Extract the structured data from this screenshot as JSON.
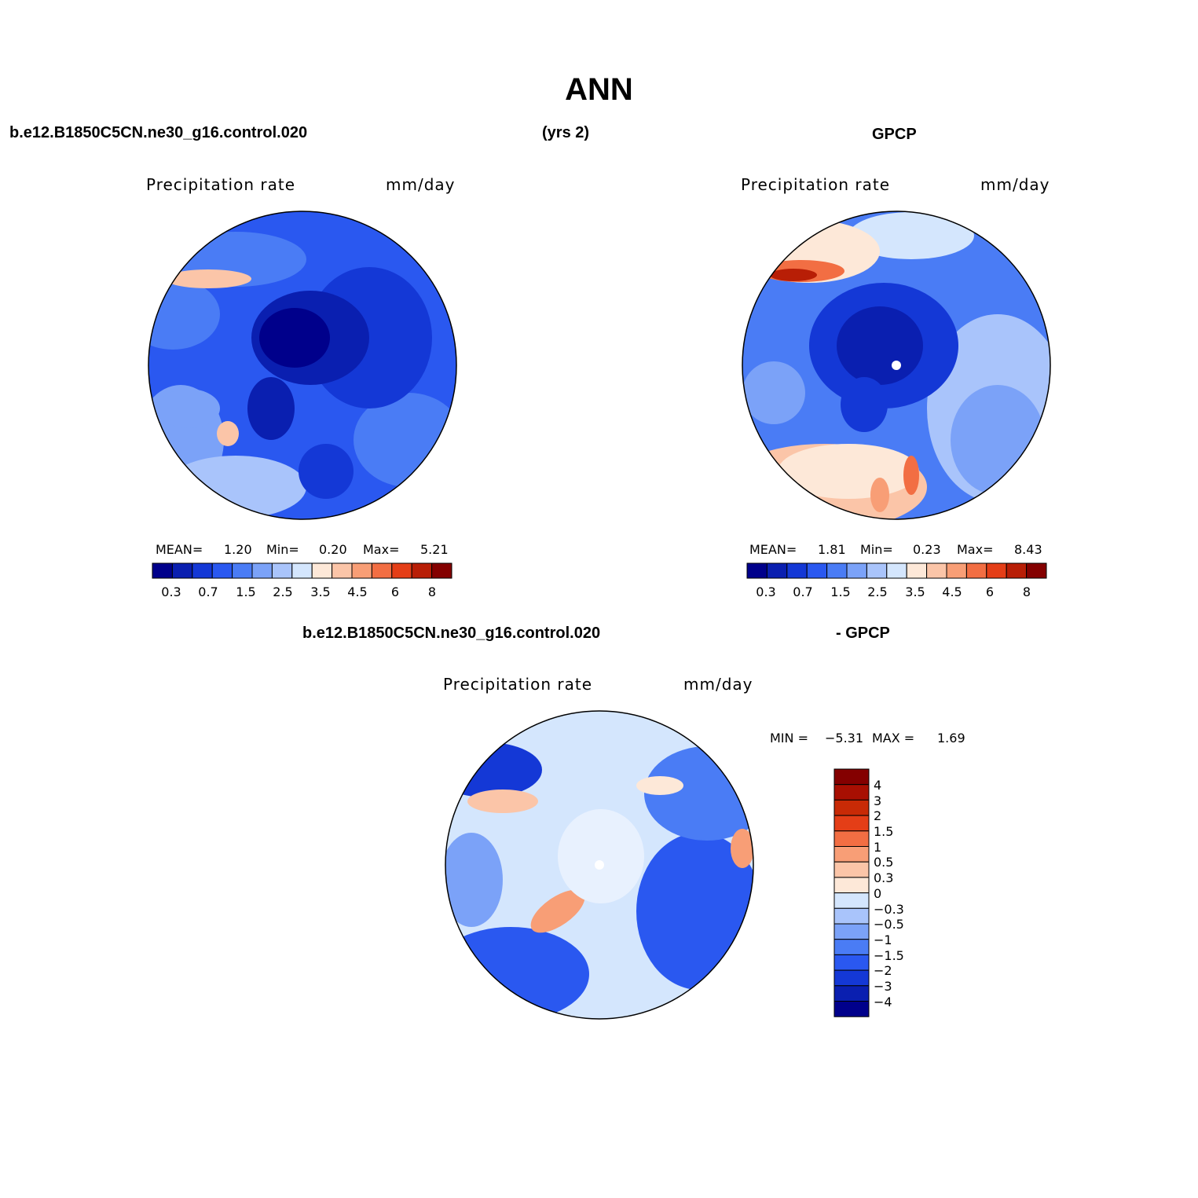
{
  "figure": {
    "title": "ANN",
    "top_left_case": "b.e12.B1850C5CN.ne30_g16.control.020",
    "top_center_years": "(yrs 2)",
    "top_right_obs": "GPCP",
    "bottom_left_case": "b.e12.B1850C5CN.ne30_g16.control.020",
    "bottom_right_obs": "- GPCP"
  },
  "panels": [
    {
      "name": "model",
      "variable": "Precipitation  rate",
      "units": "mm/day",
      "mean_label": "MEAN=",
      "mean": "1.20",
      "min_label": "Min=",
      "min": "0.20",
      "max_label": "Max=",
      "max": "5.21"
    },
    {
      "name": "obs",
      "variable": "Precipitation  rate",
      "units": "mm/day",
      "mean_label": "MEAN=",
      "mean": "1.81",
      "min_label": "Min=",
      "min": "0.23",
      "max_label": "Max=",
      "max": "8.43"
    },
    {
      "name": "diff",
      "variable": "Precipitation  rate",
      "units": "mm/day",
      "min_label": "MIN =",
      "min": "−5.31",
      "max_label": "MAX =",
      "max": "1.69"
    }
  ],
  "colorbar_abs": {
    "colors": [
      "#00008b",
      "#0a1fb0",
      "#1438d6",
      "#2a58f0",
      "#4a7cf5",
      "#7ba2f8",
      "#a9c4fb",
      "#d4e6fd",
      "#fde8d8",
      "#fbc5a8",
      "#f89e76",
      "#f26e43",
      "#e43e17",
      "#b81e06",
      "#840000"
    ],
    "tick_labels": [
      "0.3",
      "0.7",
      "1.5",
      "2.5",
      "3.5",
      "4.5",
      "6",
      "8"
    ]
  },
  "colorbar_diff": {
    "colors_top_to_bottom": [
      "#840000",
      "#a80f02",
      "#c82a06",
      "#e43e17",
      "#f26e43",
      "#f89e76",
      "#fbc5a8",
      "#fde8d8",
      "#d4e6fd",
      "#a9c4fb",
      "#7ba2f8",
      "#4a7cf5",
      "#2a58f0",
      "#1438d6",
      "#0a1fb0",
      "#00008b"
    ],
    "tick_labels": [
      "4",
      "3",
      "2",
      "1.5",
      "1",
      "0.5",
      "0.3",
      "0",
      "−0.3",
      "−0.5",
      "−1",
      "−1.5",
      "−2",
      "−3",
      "−4"
    ]
  }
}
